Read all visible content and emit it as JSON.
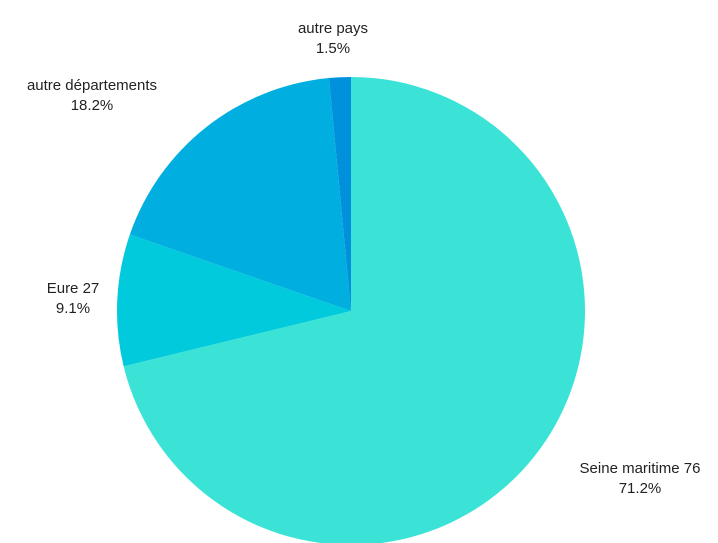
{
  "chart_data": {
    "type": "pie",
    "title": "",
    "slices": [
      {
        "label": "Seine maritime 76",
        "value": 71.2,
        "value_label": "71.2%",
        "color": "#3be3d6"
      },
      {
        "label": "Eure 27",
        "value": 9.1,
        "value_label": "9.1%",
        "color": "#00cadb"
      },
      {
        "label": "autre départements",
        "value": 18.2,
        "value_label": "18.2%",
        "color": "#00afe0"
      },
      {
        "label": "autre pays",
        "value": 1.5,
        "value_label": "1.5%",
        "color": "#0090dc"
      }
    ],
    "start_angle": "12 o'clock",
    "direction": "clockwise",
    "legend": "none"
  }
}
